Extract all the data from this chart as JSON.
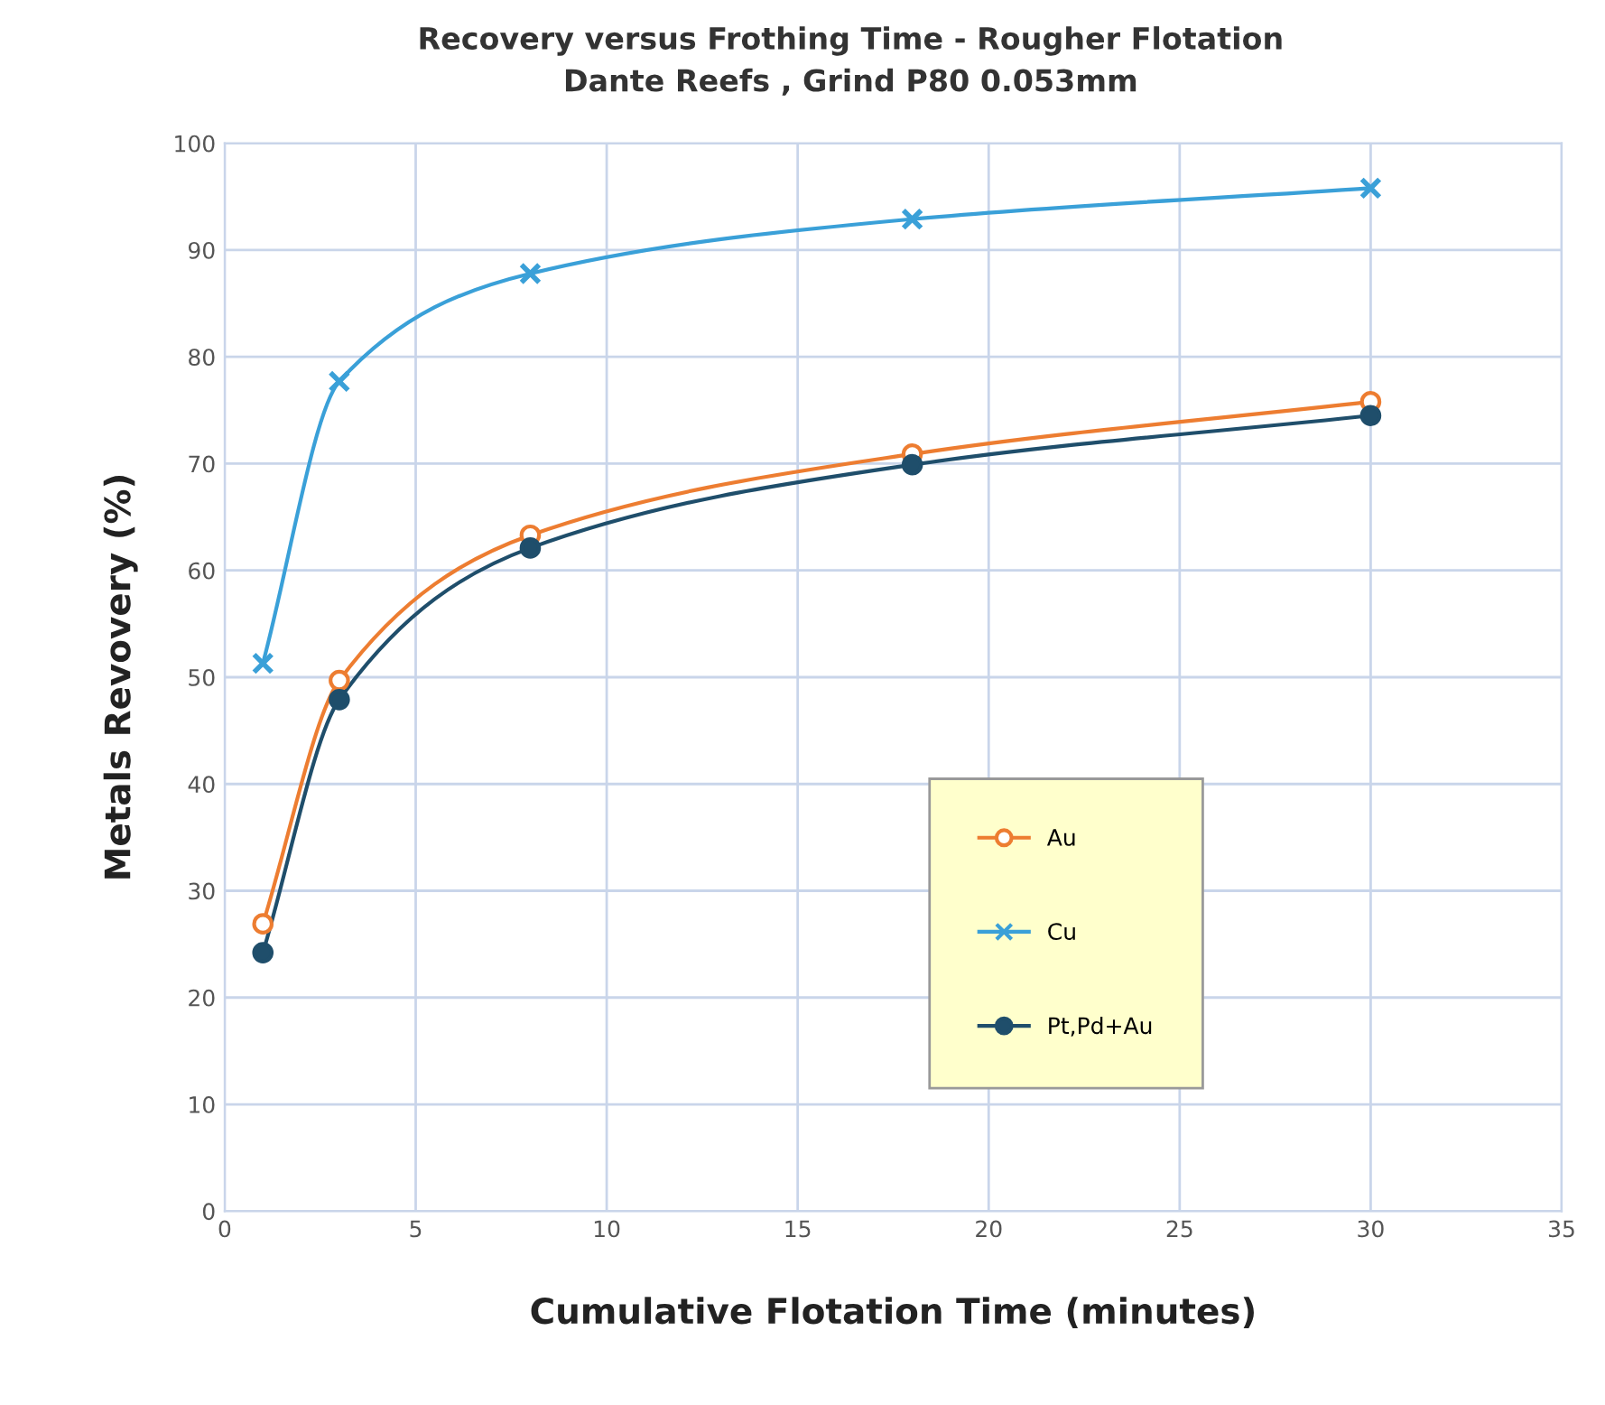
{
  "chart_data": {
    "type": "line",
    "title": "Recovery versus Frothing Time - Rougher Flotation",
    "subtitle": "Dante Reefs , Grind P80 0.053mm",
    "xlabel": "Cumulative Flotation Time (minutes)",
    "ylabel": "Metals Revovery (%)",
    "x": [
      1,
      3,
      8,
      18,
      30
    ],
    "series": [
      {
        "name": "Au",
        "color": "#ed7d31",
        "marker": "circle",
        "values": [
          26.9,
          49.7,
          63.3,
          70.9,
          75.8
        ]
      },
      {
        "name": "Cu",
        "color": "#3aa0d8",
        "marker": "cross",
        "values": [
          51.3,
          77.7,
          87.8,
          92.9,
          95.8
        ]
      },
      {
        "name": "Pt,Pd+Au",
        "color": "#1f4e6b",
        "marker": "circle",
        "values": [
          24.2,
          47.9,
          62.1,
          69.9,
          74.5
        ]
      }
    ],
    "xlim": [
      0,
      35
    ],
    "xticks": [
      0,
      5,
      10,
      15,
      20,
      25,
      30,
      35
    ],
    "ylim": [
      0,
      100
    ],
    "yticks": [
      0,
      10,
      20,
      30,
      40,
      50,
      60,
      70,
      80,
      90,
      100
    ],
    "grid": true,
    "legend": "center right"
  }
}
